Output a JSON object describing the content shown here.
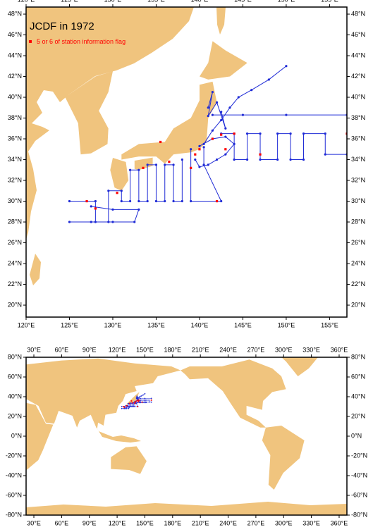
{
  "maps": [
    {
      "title": "JCDF in 1972",
      "xlim": [
        120,
        157
      ],
      "ylim": [
        18.85,
        48.68
      ],
      "xticks": [
        {
          "value": 120,
          "label": "120°E"
        },
        {
          "value": 125,
          "label": "125°E"
        },
        {
          "value": 130,
          "label": "130°E"
        },
        {
          "value": 135,
          "label": "135°E"
        },
        {
          "value": 140,
          "label": "140°E"
        },
        {
          "value": 145,
          "label": "145°E"
        },
        {
          "value": 150,
          "label": "150°E"
        },
        {
          "value": 155,
          "label": "155°E"
        }
      ],
      "yticks": [
        {
          "value": 20,
          "label": "20°N"
        },
        {
          "value": 22,
          "label": "22°N"
        },
        {
          "value": 24,
          "label": "24°N"
        },
        {
          "value": 26,
          "label": "26°N"
        },
        {
          "value": 28,
          "label": "28°N"
        },
        {
          "value": 30,
          "label": "30°N"
        },
        {
          "value": 32,
          "label": "32°N"
        },
        {
          "value": 34,
          "label": "34°N"
        },
        {
          "value": 36,
          "label": "36°N"
        },
        {
          "value": 38,
          "label": "38°N"
        },
        {
          "value": 40,
          "label": "40°N"
        },
        {
          "value": 42,
          "label": "42°N"
        },
        {
          "value": 44,
          "label": "44°N"
        },
        {
          "value": 46,
          "label": "46°N"
        },
        {
          "value": 48,
          "label": "48°N"
        }
      ],
      "tracks": {
        "color": "#1f2bd6",
        "lines": [
          {
            "lon": [
              141.5,
              145,
              150,
              157
            ],
            "lat": [
              38.3,
              38.3,
              38.3,
              38.3
            ]
          },
          {
            "lon": [
              142.5,
              144,
              144,
              145.5,
              145.5,
              147,
              147,
              149,
              149,
              150.5,
              150.5,
              152,
              152,
              154.5,
              154.5,
              157
            ],
            "lat": [
              36.5,
              36.5,
              34,
              34,
              36.5,
              36.5,
              34,
              34,
              36.5,
              36.5,
              34,
              34,
              36.5,
              36.5,
              34.5,
              34.5
            ]
          },
          {
            "lon": [
              140.5,
              141.5,
              142.5,
              143.5,
              144.5,
              146,
              148,
              150
            ],
            "lat": [
              35.5,
              36.8,
              37.8,
              39,
              40,
              40.7,
              41.7,
              43
            ]
          },
          {
            "lon": [
              125,
              128,
              128,
              129.5,
              129.5,
              131,
              131,
              132,
              132,
              133,
              133,
              134,
              134,
              135,
              135,
              136,
              136,
              137,
              137,
              138,
              138
            ],
            "lat": [
              30,
              30,
              28,
              28,
              31,
              31,
              30,
              30,
              33,
              33,
              30,
              30,
              33.5,
              33.5,
              30,
              30,
              33.5,
              33.5,
              30,
              30,
              34
            ]
          },
          {
            "lon": [
              125,
              127.5,
              130,
              132.5,
              133,
              130,
              127.5
            ],
            "lat": [
              28,
              28,
              28,
              28,
              29.2,
              29.2,
              29.5
            ]
          },
          {
            "lon": [
              139,
              139,
              142.5,
              140.5,
              140.5
            ],
            "lat": [
              35,
              30,
              30,
              33.5,
              35.2
            ]
          },
          {
            "lon": [
              139.5,
              140,
              141,
              142,
              143,
              144,
              143,
              141.5,
              140
            ],
            "lat": [
              34,
              33.3,
              33.5,
              34,
              34.5,
              35.5,
              36.2,
              36,
              35.3
            ]
          },
          {
            "lon": [
              141,
              141.5,
              141,
              142,
              143,
              142.5
            ],
            "lat": [
              39,
              40.5,
              38.2,
              39.5,
              37,
              38.6
            ]
          }
        ]
      },
      "flagged": {
        "name": "5 or 6 of station information flag",
        "color": "#ff0000",
        "lon": [
          127,
          128,
          130.5,
          133.5,
          135.5,
          139,
          139.5,
          140,
          141.5,
          142.5,
          143,
          144,
          147,
          157,
          142,
          136.5
        ],
        "lat": [
          30,
          29.3,
          30.8,
          33.2,
          35.7,
          33.2,
          34.5,
          35,
          36,
          36.4,
          35,
          36.5,
          34.5,
          36.5,
          30,
          33.8
        ]
      }
    },
    {
      "xlim": [
        21.6,
        368.4
      ],
      "ylim": [
        -80,
        80
      ],
      "xticks": [
        {
          "value": 30,
          "label": "30°E"
        },
        {
          "value": 60,
          "label": "60°E"
        },
        {
          "value": 90,
          "label": "90°E"
        },
        {
          "value": 120,
          "label": "120°E"
        },
        {
          "value": 150,
          "label": "150°E"
        },
        {
          "value": 180,
          "label": "180°E"
        },
        {
          "value": 210,
          "label": "210°E"
        },
        {
          "value": 240,
          "label": "240°E"
        },
        {
          "value": 270,
          "label": "270°E"
        },
        {
          "value": 300,
          "label": "300°E"
        },
        {
          "value": 330,
          "label": "330°E"
        },
        {
          "value": 360,
          "label": "360°E"
        }
      ],
      "yticks": [
        {
          "value": -80,
          "label": "-80°N"
        },
        {
          "value": -60,
          "label": "-60°N"
        },
        {
          "value": -40,
          "label": "-40°N"
        },
        {
          "value": -20,
          "label": "-20°N"
        },
        {
          "value": 0,
          "label": "0°N"
        },
        {
          "value": 20,
          "label": "20°N"
        },
        {
          "value": 40,
          "label": "40°N"
        },
        {
          "value": 60,
          "label": "60°N"
        },
        {
          "value": 80,
          "label": "80°N"
        }
      ]
    }
  ]
}
